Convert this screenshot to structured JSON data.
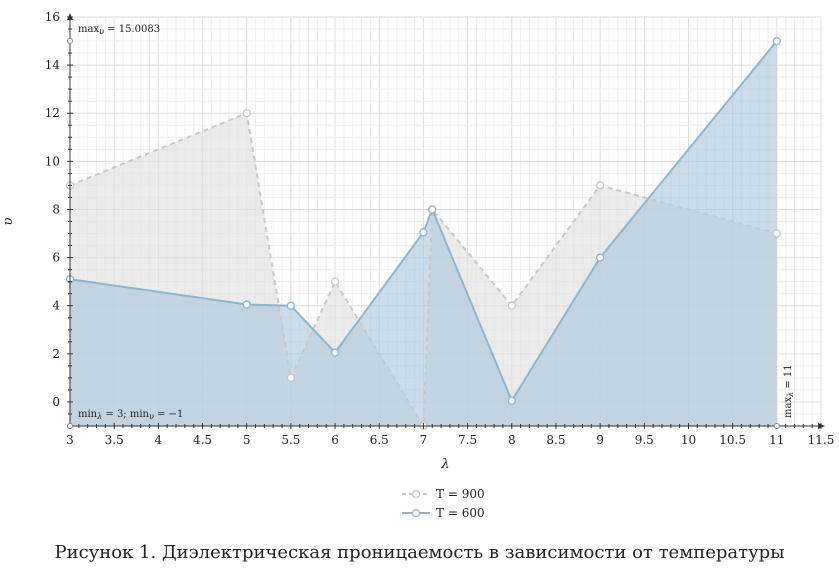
{
  "chart_data": {
    "type": "area",
    "xlabel": "λ",
    "ylabel": "υ",
    "xlim": [
      3,
      11.5
    ],
    "ylim": [
      -1,
      16
    ],
    "x_ticks": [
      3,
      3.5,
      4,
      4.5,
      5,
      5.5,
      6,
      6.5,
      7,
      7.5,
      8,
      8.5,
      9,
      9.5,
      10,
      10.5,
      11,
      11.5
    ],
    "y_ticks": [
      0,
      2,
      4,
      6,
      8,
      10,
      12,
      14,
      16
    ],
    "grid": true,
    "legend_position": "bottom-center",
    "series": [
      {
        "name": "T = 900",
        "style": "dashed",
        "color": "#c8c8c8",
        "fill": "#e0e0e0",
        "x": [
          3,
          5,
          5.5,
          6,
          7,
          7.1,
          8,
          9,
          11
        ],
        "y": [
          9,
          12,
          1,
          5,
          -1,
          8,
          4,
          9,
          7
        ]
      },
      {
        "name": "T = 600",
        "style": "solid",
        "color": "#8fb4cc",
        "fill": "#a9c6dc",
        "x": [
          3,
          5,
          5.5,
          6,
          7,
          7.1,
          8,
          9,
          11
        ],
        "y": [
          5.1,
          4.05,
          4,
          2.05,
          7.05,
          8,
          0.05,
          6,
          15
        ]
      }
    ],
    "annotations": {
      "max_y": "max",
      "max_y_sub": "υ",
      "max_y_value": " = 15.0083",
      "min_text_a": "min",
      "min_text_a_sub": "λ",
      "min_text_b": " = 3; min",
      "min_text_b_sub": "υ",
      "min_text_c": " = −1",
      "max_x": "max",
      "max_x_sub": "λ",
      "max_x_value": " = 11"
    }
  },
  "caption": "Рисунок 1. Диэлектрическая проницаемость в зависимости от температуры"
}
